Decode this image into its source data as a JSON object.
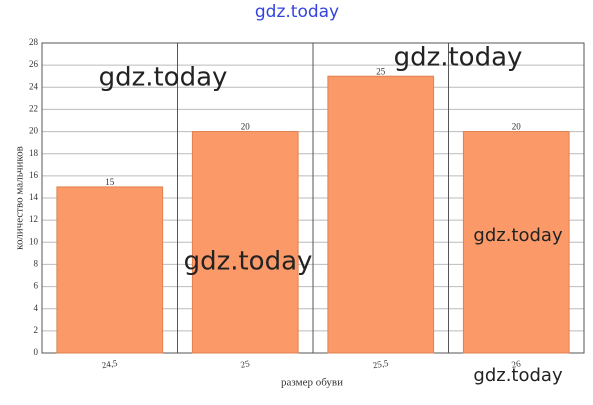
{
  "chart_data": {
    "type": "bar",
    "categories": [
      "24,5",
      "25",
      "25,5",
      "26"
    ],
    "values": [
      15,
      20,
      25,
      20
    ],
    "color": "#fb9a68",
    "xlabel": "размер обуви",
    "ylabel": "количество мальчиков",
    "ylim": [
      0,
      28
    ],
    "yticks": [
      0,
      2,
      4,
      6,
      8,
      10,
      12,
      14,
      16,
      18,
      20,
      22,
      24,
      26,
      28
    ],
    "grid": true,
    "watermarks": [
      "gdz.today",
      "gdz.today",
      "gdz.today",
      "gdz.today",
      "gdz.today",
      "gdz.today"
    ]
  }
}
